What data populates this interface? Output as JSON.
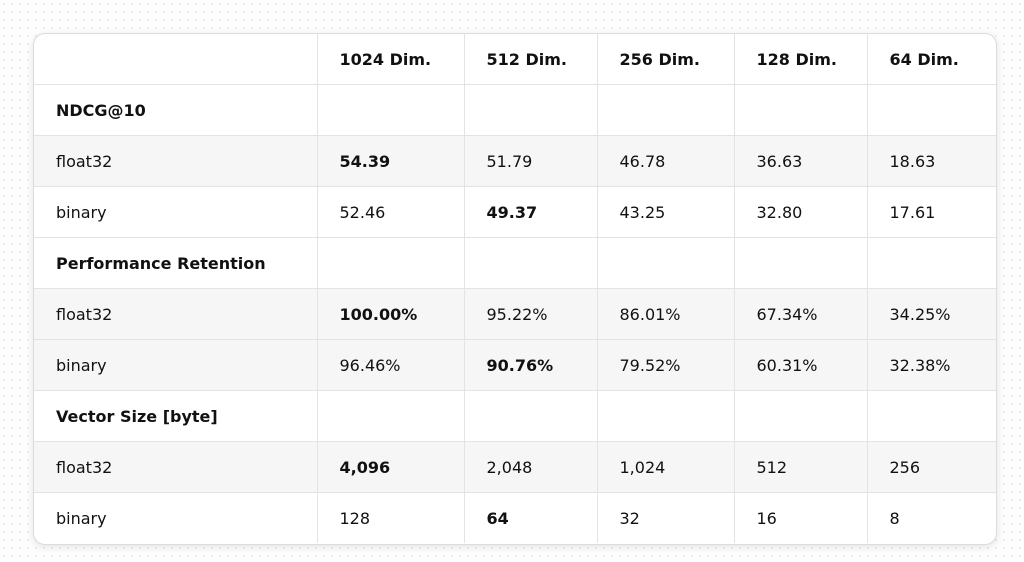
{
  "table": {
    "columns": [
      "",
      "1024 Dim.",
      "512 Dim.",
      "256 Dim.",
      "128 Dim.",
      "64 Dim."
    ],
    "sections": [
      {
        "title": "NDCG@10",
        "rows": [
          {
            "label": "float32",
            "values": [
              "54.39",
              "51.79",
              "46.78",
              "36.63",
              "18.63"
            ]
          },
          {
            "label": "binary",
            "values": [
              "52.46",
              "49.37",
              "43.25",
              "32.80",
              "17.61"
            ]
          }
        ]
      },
      {
        "title": "Performance Retention",
        "rows": [
          {
            "label": "float32",
            "values": [
              "100.00%",
              "95.22%",
              "86.01%",
              "67.34%",
              "34.25%"
            ]
          },
          {
            "label": "binary",
            "values": [
              "96.46%",
              "90.76%",
              "79.52%",
              "60.31%",
              "32.38%"
            ]
          }
        ]
      },
      {
        "title": "Vector Size [byte]",
        "rows": [
          {
            "label": "float32",
            "values": [
              "4,096",
              "2,048",
              "1,024",
              "512",
              "256"
            ]
          },
          {
            "label": "binary",
            "values": [
              "128",
              "64",
              "32",
              "16",
              "8"
            ]
          }
        ]
      }
    ]
  },
  "colors": {
    "card_background": "#ffffff",
    "shaded_row": "#f6f6f6",
    "grid_line": "#e3e3e3"
  }
}
